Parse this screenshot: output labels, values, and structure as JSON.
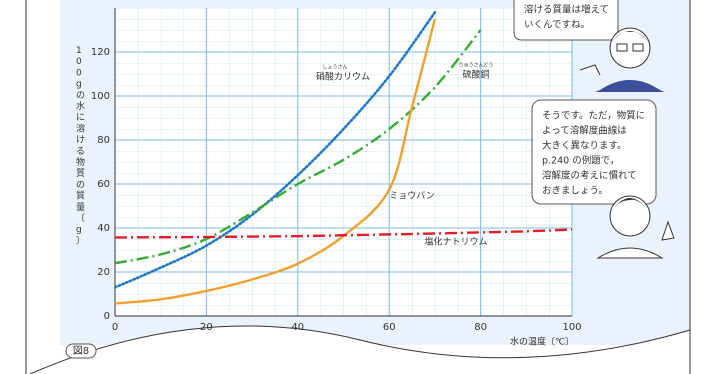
{
  "chart_data": {
    "type": "line",
    "y_label": "100gの水に溶ける物質の質量〔g〕",
    "x_label": "水の温度〔℃〕",
    "figure_label": "図8",
    "xlim": [
      0,
      100
    ],
    "xticks": [
      0,
      20,
      40,
      60,
      80,
      100
    ],
    "ylim": [
      0,
      140
    ],
    "yticks": [
      0,
      20,
      40,
      60,
      80,
      100,
      120
    ],
    "grid": true,
    "annotations": [
      "しょうさん",
      "りゅうさんどう"
    ],
    "series": [
      {
        "name": "硝酸カリウム",
        "color": "#1f78c8",
        "dash": "dotted",
        "x": [
          0,
          10,
          20,
          30,
          40,
          50,
          60,
          70
        ],
        "values": [
          13,
          22,
          32,
          46,
          64,
          85,
          109,
          138
        ]
      },
      {
        "name": "硫酸銅",
        "color": "#3aaa35",
        "dash": "dashdot",
        "x": [
          0,
          10,
          20,
          30,
          40,
          50,
          60,
          70,
          80
        ],
        "values": [
          24,
          28,
          35,
          47,
          60,
          71,
          85,
          104,
          130
        ]
      },
      {
        "name": "ミョウバン",
        "color": "#f0a030",
        "dash": "solid",
        "x": [
          0,
          10,
          20,
          30,
          40,
          50,
          60,
          65,
          70
        ],
        "values": [
          5.7,
          7.6,
          11.4,
          16.6,
          23.8,
          36.4,
          57.4,
          95,
          135
        ]
      },
      {
        "name": "塩化ナトリウム",
        "color": "#e01f2b",
        "dash": "dashdot",
        "x": [
          0,
          10,
          20,
          30,
          40,
          50,
          60,
          70,
          80,
          90,
          100
        ],
        "values": [
          35.7,
          35.8,
          35.9,
          36.1,
          36.3,
          36.7,
          37.1,
          37.5,
          38,
          38.5,
          39.3
        ]
      }
    ]
  },
  "bubbles": [
    {
      "lines": [
        "溶ける質量は増えて",
        "いくんですね。"
      ]
    },
    {
      "lines": [
        "そうです。ただ，物質に",
        "よって溶解度曲線は",
        "大きく異なります。",
        "p.240 の例題で，",
        "溶解度の考えに慣れて",
        "おきましょう。"
      ]
    }
  ]
}
